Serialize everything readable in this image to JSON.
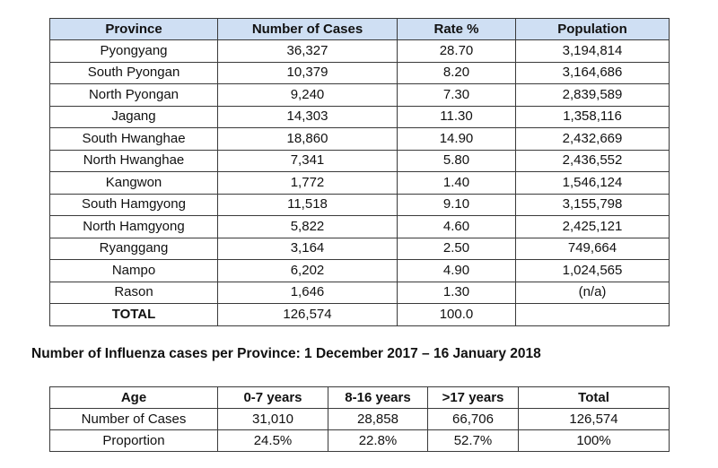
{
  "province_table": {
    "headers": [
      "Province",
      "Number of Cases",
      "Rate %",
      "Population"
    ],
    "rows": [
      [
        "Pyongyang",
        "36,327",
        "28.70",
        "3,194,814"
      ],
      [
        "South Pyongan",
        "10,379",
        "8.20",
        "3,164,686"
      ],
      [
        "North Pyongan",
        "9,240",
        "7.30",
        "2,839,589"
      ],
      [
        "Jagang",
        "14,303",
        "11.30",
        "1,358,116"
      ],
      [
        "South Hwanghae",
        "18,860",
        "14.90",
        "2,432,669"
      ],
      [
        "North Hwanghae",
        "7,341",
        "5.80",
        "2,436,552"
      ],
      [
        "Kangwon",
        "1,772",
        "1.40",
        "1,546,124"
      ],
      [
        "South Hamgyong",
        "11,518",
        "9.10",
        "3,155,798"
      ],
      [
        "North Hamgyong",
        "5,822",
        "4.60",
        "2,425,121"
      ],
      [
        "Ryanggang",
        "3,164",
        "2.50",
        "749,664"
      ],
      [
        "Nampo",
        "6,202",
        "4.90",
        "1,024,565"
      ],
      [
        "Rason",
        "1,646",
        "1.30",
        "(n/a)"
      ]
    ],
    "total": [
      "TOTAL",
      "126,574",
      "100.0",
      ""
    ]
  },
  "caption": "Number of Influenza cases per Province: 1 December 2017 – 16 January 2018",
  "age_table": {
    "headers": [
      "Age",
      "0-7 years",
      "8-16 years",
      ">17 years",
      "Total"
    ],
    "rows": [
      [
        "Number of Cases",
        "31,010",
        "28,858",
        "66,706",
        "126,574"
      ],
      [
        "Proportion",
        "24.5%",
        "22.8%",
        "52.7%",
        "100%"
      ]
    ]
  }
}
